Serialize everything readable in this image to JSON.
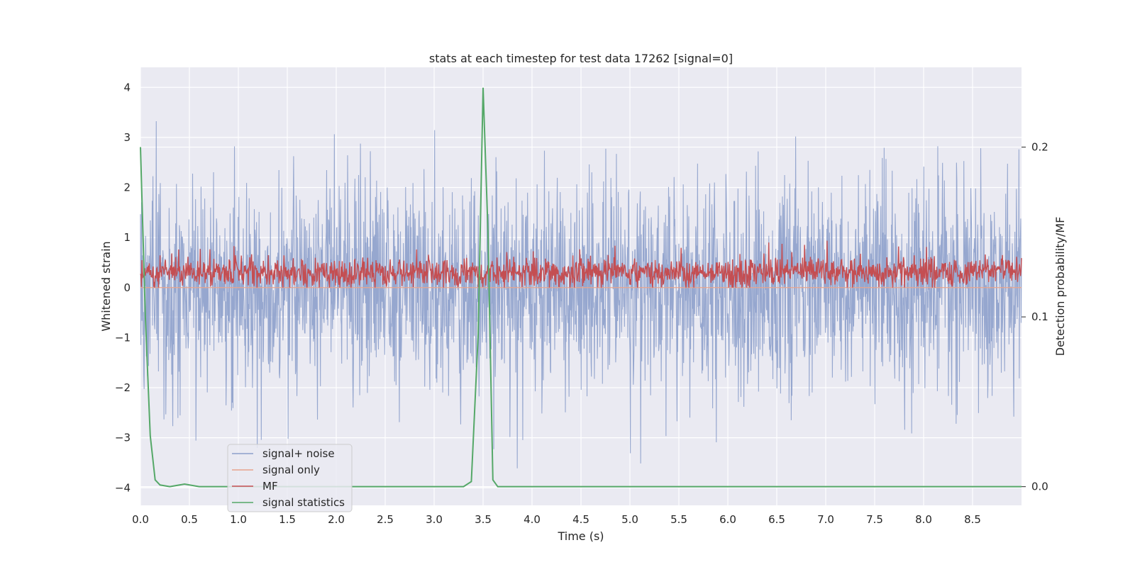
{
  "chart_data": {
    "type": "line",
    "title": "stats at each timestep for test data 17262 [signal=0]",
    "xlabel": "Time (s)",
    "ylabel": "Whitened strain",
    "y2label": "Detection probability/MF",
    "xlim": [
      0.0,
      9.0
    ],
    "ylim": [
      -4.35,
      4.4
    ],
    "y2lim": [
      -0.011,
      0.247
    ],
    "x_ticks": [
      "0.0",
      "0.5",
      "1.0",
      "1.5",
      "2.0",
      "2.5",
      "3.0",
      "3.5",
      "4.0",
      "4.5",
      "5.0",
      "5.5",
      "6.0",
      "6.5",
      "7.0",
      "7.5",
      "8.0",
      "8.5"
    ],
    "y_ticks": [
      "4",
      "3",
      "2",
      "1",
      "0",
      "−1",
      "−2",
      "−3",
      "−4"
    ],
    "y2_ticks": [
      "0.2",
      "0.1",
      "0.0"
    ],
    "grid": true,
    "legend_position": "lower-left",
    "series": [
      {
        "name": "signal+ noise",
        "color": "#8da0cb",
        "description": "dense noisy whitened strain, roughly between -3.5 and 4",
        "noise_sigma": 1.0
      },
      {
        "name": "signal only",
        "color": "#e8a38c",
        "values_note": "flat at 0"
      },
      {
        "name": "MF",
        "color": "#c44e52",
        "noise_range": [
          0.0,
          1.0
        ],
        "mean": 0.3
      },
      {
        "name": "signal statistics",
        "color": "#55a868",
        "axis": "right",
        "x": [
          0.0,
          0.05,
          0.1,
          0.15,
          0.2,
          0.3,
          0.45,
          0.6,
          3.3,
          3.38,
          3.45,
          3.5,
          3.55,
          3.6,
          3.65,
          9.0
        ],
        "values": [
          0.2,
          0.1,
          0.03,
          0.004,
          0.001,
          0.0,
          0.0015,
          0.0,
          0.0,
          0.003,
          0.09,
          0.235,
          0.15,
          0.004,
          0.0,
          0.0
        ]
      }
    ]
  }
}
